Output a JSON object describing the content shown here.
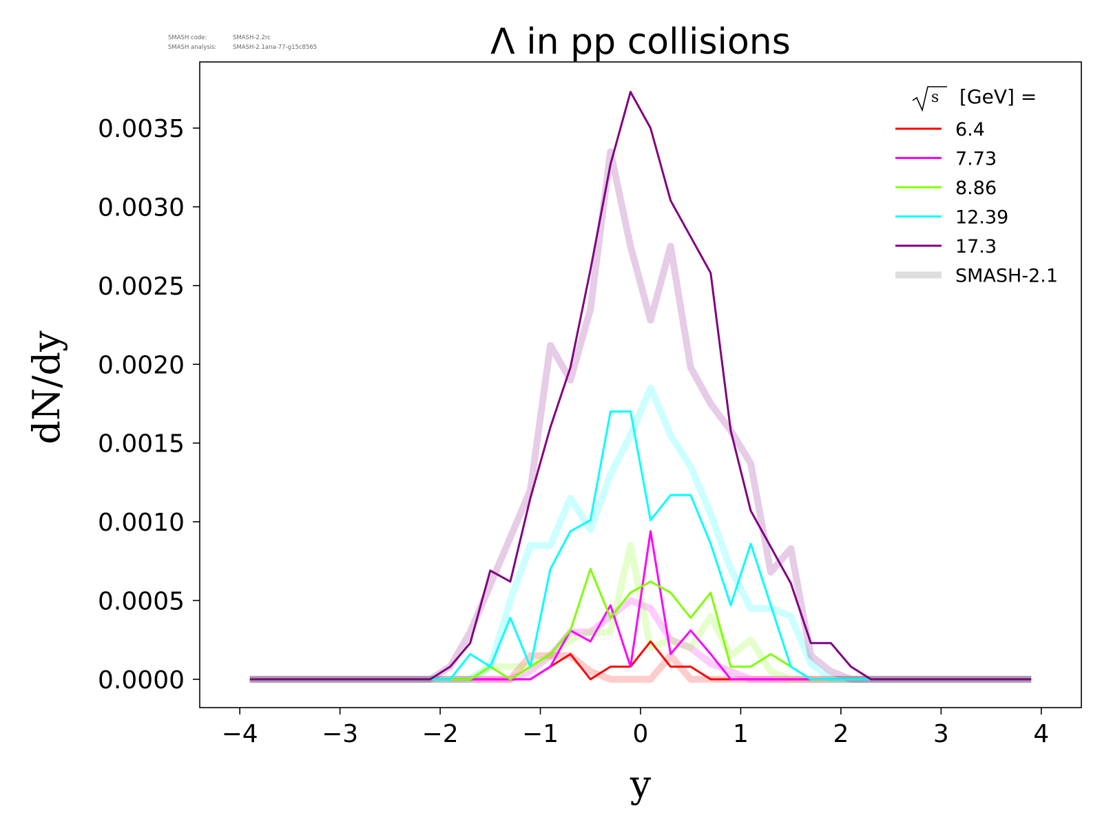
{
  "meta": {
    "code_label": "SMASH code:",
    "code_value": "SMASH-2.2rc",
    "analysis_label": "SMASH analysis:",
    "analysis_value": "SMASH-2.1ana-77-g15c8565"
  },
  "chart_data": {
    "type": "line",
    "title": "Λ in pp collisions",
    "xlabel": "y",
    "ylabel": "dN/dy",
    "xlim": [
      -4.4,
      4.4
    ],
    "ylim": [
      -0.00018,
      0.00392
    ],
    "xticks": [
      -4,
      -3,
      -2,
      -1,
      0,
      1,
      2,
      3,
      4
    ],
    "xtick_labels": [
      "−4",
      "−3",
      "−2",
      "−1",
      "0",
      "1",
      "2",
      "3",
      "4"
    ],
    "yticks": [
      0.0,
      0.0005,
      0.001,
      0.0015,
      0.002,
      0.0025,
      0.003,
      0.0035
    ],
    "ytick_labels": [
      "0.0000",
      "0.0005",
      "0.0010",
      "0.0015",
      "0.0020",
      "0.0025",
      "0.0030",
      "0.0035"
    ],
    "grid": false,
    "legend": {
      "position": "top-right",
      "title_suffix": "[GeV] =",
      "reference_label": "SMASH-2.1"
    },
    "x": [
      -3.9,
      -2.1,
      -1.9,
      -1.7,
      -1.5,
      -1.3,
      -1.1,
      -0.9,
      -0.7,
      -0.5,
      -0.3,
      -0.1,
      0.1,
      0.3,
      0.5,
      0.7,
      0.9,
      1.1,
      1.3,
      1.5,
      1.7,
      1.9,
      2.1,
      2.3,
      3.9
    ],
    "series": [
      {
        "name": "6.4",
        "color": "#ff0000",
        "values": [
          0,
          0,
          0,
          0,
          0,
          0,
          0,
          8e-05,
          0.00016,
          0,
          8e-05,
          8e-05,
          0.00024,
          8e-05,
          8e-05,
          0,
          0,
          0,
          0,
          0,
          0,
          0,
          0,
          0,
          0
        ],
        "reference": [
          0,
          0,
          0,
          0,
          0,
          0,
          0.00015,
          0.00015,
          0.00015,
          5e-05,
          0,
          0,
          0,
          0.00015,
          0,
          0,
          0,
          0,
          0,
          0,
          0,
          0,
          0,
          0,
          0
        ]
      },
      {
        "name": "7.73",
        "color": "#ff00ff",
        "values": [
          0,
          0,
          0,
          0,
          0,
          0,
          0,
          8e-05,
          0.00031,
          0.00024,
          0.00047,
          8e-05,
          0.00094,
          0.00016,
          0.00031,
          0.00016,
          0,
          0,
          0,
          0,
          0,
          0,
          0,
          0,
          0
        ],
        "reference": [
          0,
          0,
          0,
          0,
          0,
          0,
          5e-05,
          0.00015,
          0.0003,
          0.0003,
          0.0004,
          0.0005,
          0.00045,
          0.00025,
          0.0002,
          0.0001,
          5e-05,
          0,
          0,
          0,
          0,
          0,
          0,
          0,
          0
        ]
      },
      {
        "name": "8.86",
        "color": "#7fff00",
        "values": [
          0,
          0,
          0,
          0,
          8e-05,
          0,
          8e-05,
          0.00016,
          0.00031,
          0.0007,
          0.00039,
          0.00055,
          0.00062,
          0.00055,
          0.00039,
          0.00055,
          8e-05,
          8e-05,
          0.00016,
          8e-05,
          0,
          0,
          0,
          0,
          0
        ],
        "reference": [
          0,
          0,
          0,
          0,
          8e-05,
          8e-05,
          8e-05,
          0.00015,
          0.00025,
          0.0003,
          0.0003,
          0.00085,
          0.0002,
          0.00025,
          0.0002,
          0.0004,
          0.00015,
          0.00025,
          5e-05,
          0,
          0,
          0,
          0,
          0,
          0
        ]
      },
      {
        "name": "12.39",
        "color": "#00ffff",
        "values": [
          0,
          0,
          0,
          0.00016,
          8e-05,
          0.00039,
          8e-05,
          0.0007,
          0.00094,
          0.00101,
          0.0017,
          0.0017,
          0.00101,
          0.00117,
          0.00117,
          0.00086,
          0.00047,
          0.00086,
          0.00047,
          8e-05,
          0,
          0,
          0,
          0,
          0
        ],
        "reference": [
          0,
          0,
          0,
          0,
          8e-05,
          0.0005,
          0.00085,
          0.00085,
          0.00115,
          0.00095,
          0.0013,
          0.00155,
          0.00185,
          0.00155,
          0.00135,
          0.00105,
          0.0007,
          0.00045,
          0.00045,
          0.0004,
          0.0001,
          0,
          0,
          0,
          0
        ]
      },
      {
        "name": "17.3",
        "color": "#800080",
        "values": [
          0,
          0,
          8e-05,
          0.00023,
          0.00069,
          0.00062,
          0.00115,
          0.0016,
          0.00198,
          0.0026,
          0.00327,
          0.00373,
          0.0035,
          0.00304,
          0.00281,
          0.00258,
          0.00158,
          0.00107,
          0.00084,
          0.00061,
          0.00023,
          0.00023,
          8e-05,
          0,
          0
        ],
        "reference": [
          0,
          0,
          8e-05,
          0.0003,
          0.0006,
          0.0009,
          0.0012,
          0.00212,
          0.0019,
          0.00235,
          0.00335,
          0.00275,
          0.00228,
          0.00275,
          0.00198,
          0.00175,
          0.00158,
          0.00137,
          0.00068,
          0.00083,
          0.00015,
          5e-05,
          0,
          0,
          0
        ]
      }
    ]
  }
}
